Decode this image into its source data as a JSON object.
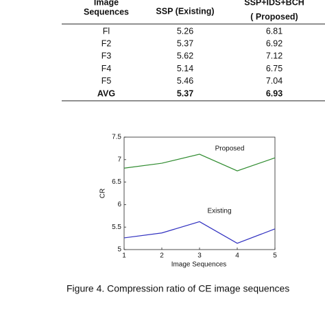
{
  "table": {
    "header": [
      [
        "Image",
        "Sequences"
      ],
      [
        "SSP (Existing)"
      ],
      [
        "SSP+IDS+BCH",
        "( Proposed)"
      ]
    ],
    "rows": [
      [
        "Fl",
        5.26,
        6.81
      ],
      [
        "F2",
        5.37,
        6.92
      ],
      [
        "F3",
        5.62,
        7.12
      ],
      [
        "F4",
        5.14,
        6.75
      ],
      [
        "F5",
        5.46,
        7.04
      ],
      [
        "AVG",
        5.37,
        6.93
      ]
    ],
    "bold_last_row": true
  },
  "chart_data": {
    "type": "line",
    "x": [
      1,
      2,
      3,
      4,
      5
    ],
    "series": [
      {
        "name": "Proposed",
        "color": "#2e8b2e",
        "values": [
          6.81,
          6.92,
          7.12,
          6.75,
          7.04
        ]
      },
      {
        "name": "Existing",
        "color": "#3030c0",
        "values": [
          5.26,
          5.37,
          5.62,
          5.14,
          5.46
        ]
      }
    ],
    "xlim": [
      1,
      5
    ],
    "xticks": [
      1,
      2,
      3,
      4,
      5
    ],
    "ylim": [
      5,
      7.5
    ],
    "yticks": [
      5,
      5.5,
      6,
      6.5,
      7,
      7.5
    ],
    "xlabel": "Image Sequences",
    "ylabel": "CR"
  },
  "caption": "Figure 4. Compression ratio of CE image sequences"
}
